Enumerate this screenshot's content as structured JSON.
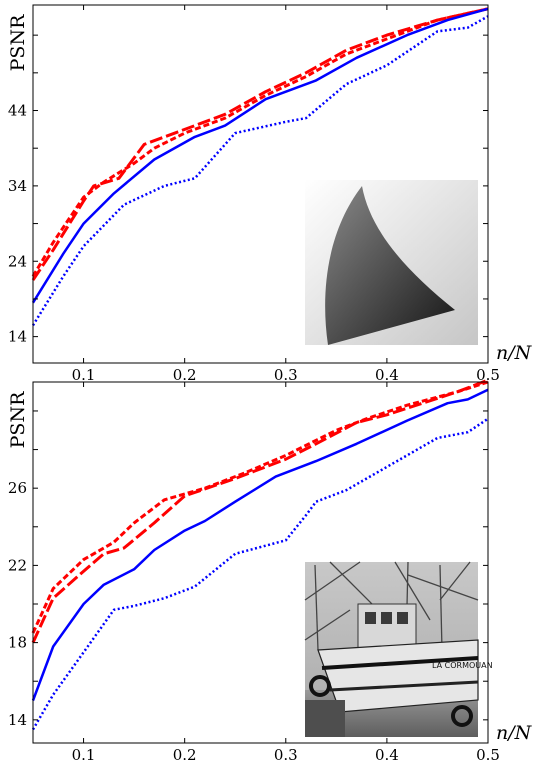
{
  "chart_data": [
    {
      "type": "line",
      "ylabel": "PSNR",
      "xlabel": "n/N",
      "xlim": [
        0.05,
        0.5
      ],
      "ylim": [
        10.5,
        58
      ],
      "xticks": [
        0.1,
        0.2,
        0.3,
        0.4,
        0.5
      ],
      "yticks": [
        14,
        24,
        34,
        44
      ],
      "grid": false,
      "inset": "gray wedge image",
      "series": [
        {
          "color": "#ff0000",
          "style": "dashed",
          "width": 3,
          "x": [
            0.05,
            0.07,
            0.1,
            0.12,
            0.15,
            0.17,
            0.2,
            0.24,
            0.28,
            0.32,
            0.36,
            0.4,
            0.45,
            0.5
          ],
          "y": [
            22,
            26.5,
            32.5,
            34.5,
            37,
            39,
            41,
            43,
            46,
            48.5,
            51.5,
            53.5,
            56,
            57.5
          ]
        },
        {
          "color": "#ff0000",
          "style": "longdash",
          "width": 3,
          "x": [
            0.05,
            0.07,
            0.1,
            0.11,
            0.135,
            0.16,
            0.2,
            0.24,
            0.28,
            0.32,
            0.36,
            0.4,
            0.45,
            0.5
          ],
          "y": [
            21.5,
            25.5,
            32,
            34,
            35,
            39.5,
            41.5,
            43.5,
            46.5,
            49,
            52,
            54,
            56,
            57.5
          ]
        },
        {
          "color": "#0000ff",
          "style": "solid",
          "width": 2.5,
          "x": [
            0.05,
            0.08,
            0.1,
            0.13,
            0.17,
            0.21,
            0.24,
            0.28,
            0.33,
            0.37,
            0.42,
            0.46,
            0.5
          ],
          "y": [
            18.5,
            25,
            29,
            33,
            37.5,
            40.5,
            42,
            45.5,
            48,
            51,
            54,
            56,
            57.5
          ]
        },
        {
          "color": "#0000ff",
          "style": "dotted",
          "width": 2.5,
          "x": [
            0.05,
            0.08,
            0.1,
            0.14,
            0.18,
            0.21,
            0.25,
            0.3,
            0.32,
            0.36,
            0.4,
            0.45,
            0.48,
            0.5
          ],
          "y": [
            15.5,
            22,
            26,
            31.5,
            34,
            35,
            41,
            42.5,
            43,
            47.5,
            50,
            54.5,
            55,
            56.5
          ]
        }
      ]
    },
    {
      "type": "line",
      "ylabel": "PSNR",
      "xlabel": "n/N",
      "xlim": [
        0.05,
        0.5
      ],
      "ylim": [
        12.8,
        31.5
      ],
      "xticks": [
        0.1,
        0.2,
        0.3,
        0.4,
        0.5
      ],
      "yticks": [
        14,
        18,
        22,
        26
      ],
      "grid": false,
      "inset": "boat photograph",
      "series": [
        {
          "color": "#ff0000",
          "style": "dashed",
          "width": 3,
          "x": [
            0.05,
            0.07,
            0.1,
            0.13,
            0.15,
            0.18,
            0.22,
            0.26,
            0.3,
            0.35,
            0.38,
            0.42,
            0.47,
            0.5
          ],
          "y": [
            18.5,
            20.8,
            22.3,
            23.2,
            24.2,
            25.4,
            26,
            26.8,
            27.7,
            29,
            29.6,
            30.3,
            31,
            31.5
          ]
        },
        {
          "color": "#ff0000",
          "style": "longdash",
          "width": 3,
          "x": [
            0.05,
            0.07,
            0.1,
            0.12,
            0.14,
            0.17,
            0.2,
            0.25,
            0.3,
            0.33,
            0.37,
            0.4,
            0.47,
            0.5
          ],
          "y": [
            18,
            20.3,
            21.7,
            22.6,
            22.9,
            24.2,
            25.6,
            26.5,
            27.5,
            28.3,
            29.4,
            29.8,
            31,
            31.6
          ]
        },
        {
          "color": "#0000ff",
          "style": "solid",
          "width": 2.5,
          "x": [
            0.05,
            0.07,
            0.1,
            0.12,
            0.15,
            0.17,
            0.2,
            0.22,
            0.25,
            0.29,
            0.33,
            0.37,
            0.42,
            0.46,
            0.48,
            0.5
          ],
          "y": [
            15,
            17.8,
            20,
            21,
            21.8,
            22.8,
            23.8,
            24.3,
            25.3,
            26.6,
            27.4,
            28.3,
            29.5,
            30.4,
            30.6,
            31.1
          ]
        },
        {
          "color": "#0000ff",
          "style": "dotted",
          "width": 2.5,
          "x": [
            0.05,
            0.07,
            0.1,
            0.13,
            0.15,
            0.18,
            0.21,
            0.25,
            0.3,
            0.32,
            0.33,
            0.36,
            0.4,
            0.45,
            0.48,
            0.5
          ],
          "y": [
            13.5,
            15.3,
            17.5,
            19.7,
            19.9,
            20.3,
            20.9,
            22.6,
            23.3,
            24.6,
            25.3,
            25.9,
            27.1,
            28.6,
            28.9,
            29.6
          ]
        }
      ]
    }
  ]
}
